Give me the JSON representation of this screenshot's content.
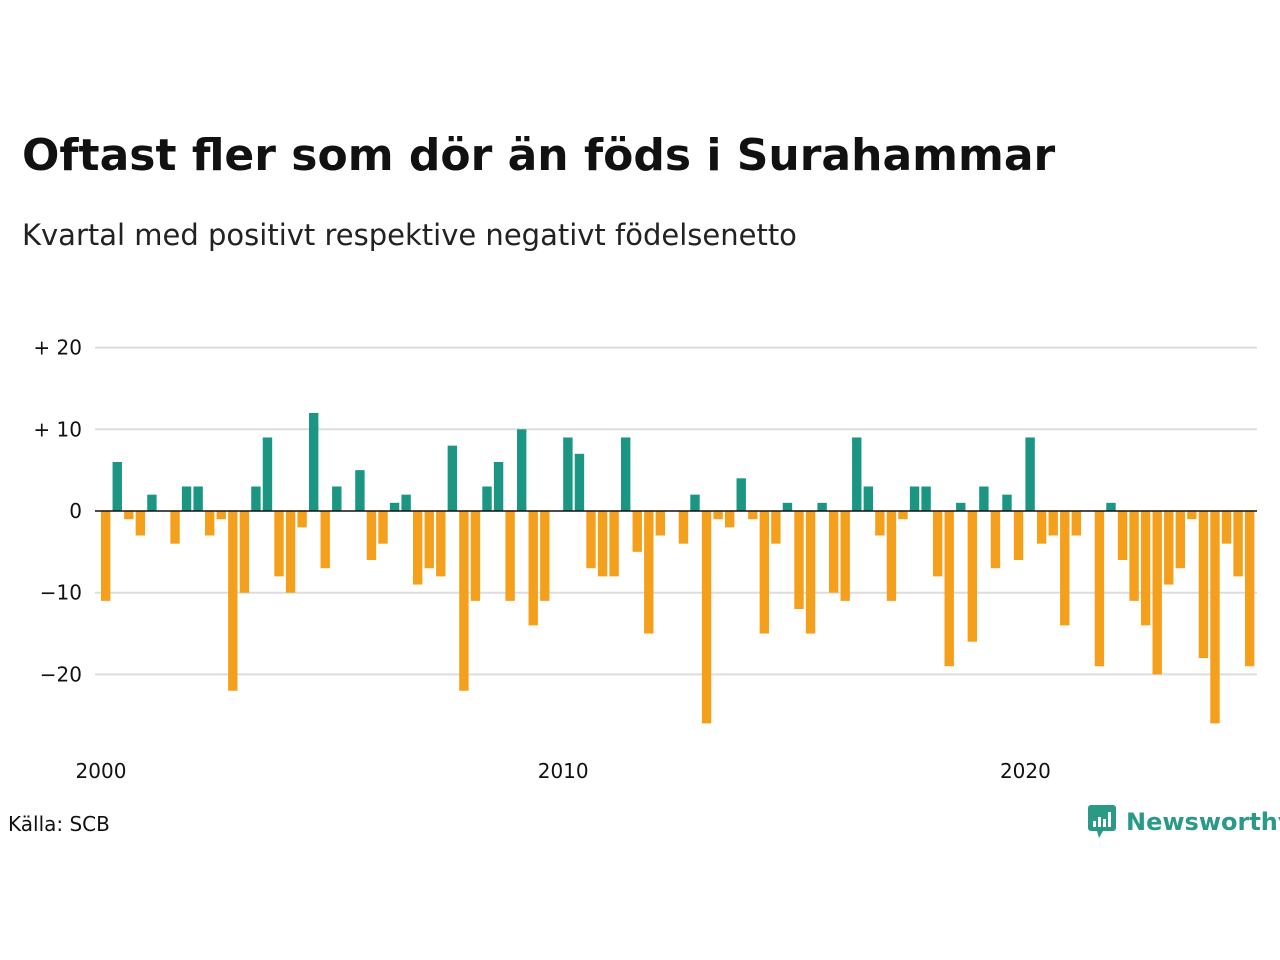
{
  "title": "Oftast fler som dör än föds i Surahammar",
  "subtitle": "Kvartal med positivt respektive negativt födelsenetto",
  "source": "Källa: SCB",
  "brand": {
    "name": "Newsworthy",
    "logo_icon": "newsworthy-logo-icon",
    "color": "#2a9a86"
  },
  "colors": {
    "positive": "#1b9683",
    "negative": "#f5a01d",
    "grid": "#dddddd",
    "zero_line": "#111111"
  },
  "chart_data": {
    "type": "bar",
    "title": "Oftast fler som dör än föds i Surahammar",
    "subtitle": "Kvartal med positivt respektive negativt födelsenetto",
    "xlabel": "",
    "ylabel": "",
    "ylim": [
      -27,
      20
    ],
    "yticks": [
      {
        "value": 20,
        "label": "+ 20"
      },
      {
        "value": 10,
        "label": "+ 10"
      },
      {
        "value": 0,
        "label": "0"
      },
      {
        "value": -10,
        "label": "−10"
      },
      {
        "value": -20,
        "label": "−20"
      }
    ],
    "xticks": [
      {
        "value": 2000,
        "label": "2000"
      },
      {
        "value": 2010,
        "label": "2010"
      },
      {
        "value": 2020,
        "label": "2020"
      }
    ],
    "grid": true,
    "legend": false,
    "start": "2000 Q1",
    "frequency": "quarterly",
    "values": [
      -11,
      6,
      -1,
      -3,
      2,
      0,
      -4,
      3,
      3,
      -3,
      -1,
      -22,
      -10,
      3,
      9,
      -8,
      -10,
      -2,
      12,
      -7,
      3,
      0,
      5,
      -6,
      -4,
      1,
      2,
      -9,
      -7,
      -8,
      8,
      -22,
      -11,
      3,
      6,
      -11,
      10,
      -14,
      -11,
      0,
      9,
      7,
      -7,
      -8,
      -8,
      9,
      -5,
      -15,
      -3,
      0,
      -4,
      2,
      -26,
      -1,
      -2,
      4,
      -1,
      -15,
      -4,
      1,
      -12,
      -15,
      1,
      -10,
      -11,
      9,
      3,
      -3,
      -11,
      -1,
      3,
      3,
      -8,
      -19,
      1,
      -16,
      3,
      -7,
      2,
      -6,
      9,
      -4,
      -3,
      -14,
      -3,
      0,
      -19,
      1,
      -6,
      -11,
      -14,
      -20,
      -9,
      -7,
      -1,
      -18,
      -26,
      -4,
      -8,
      -19
    ]
  }
}
